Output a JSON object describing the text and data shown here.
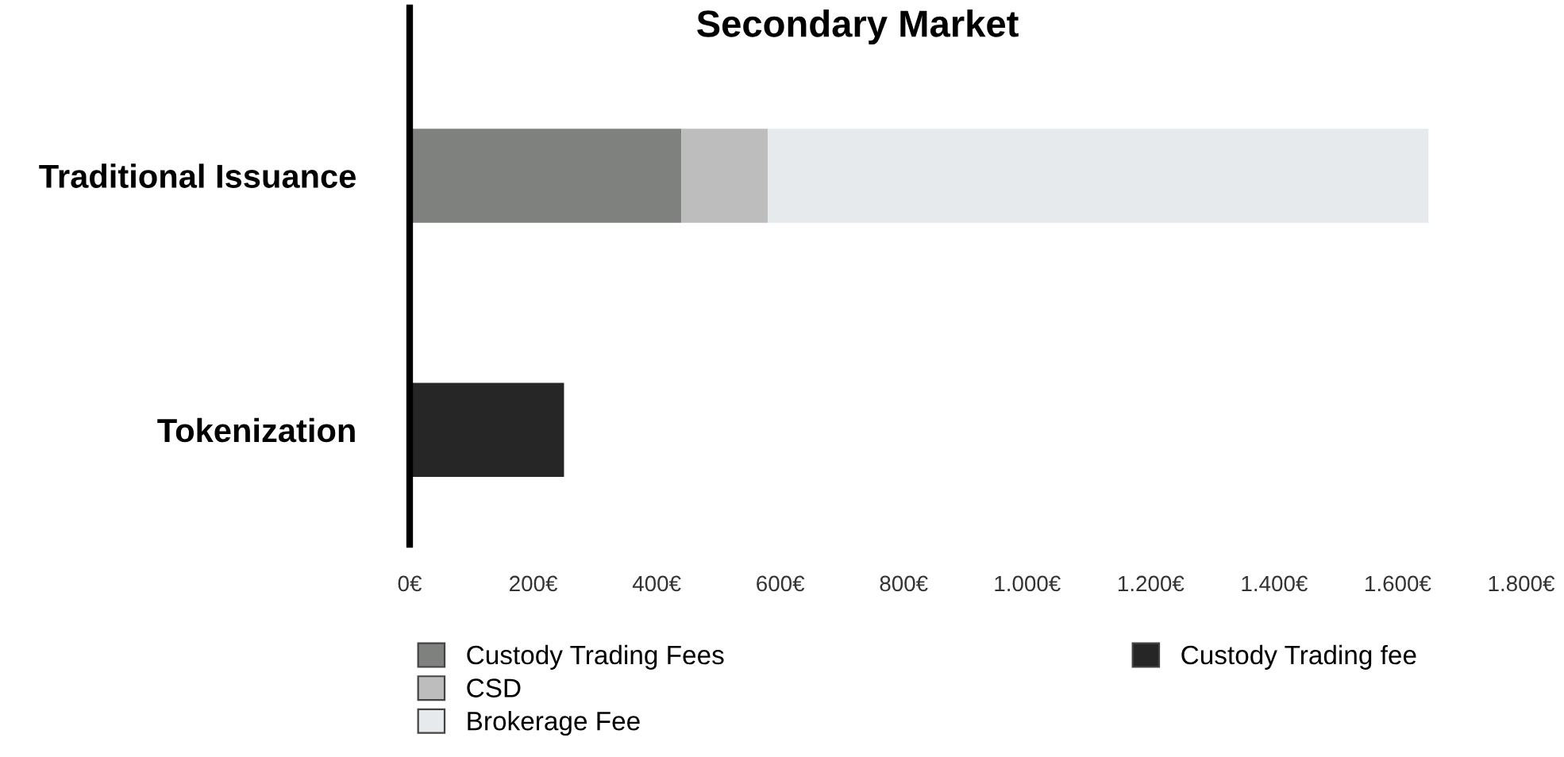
{
  "chart_data": {
    "type": "bar",
    "title": "Secondary Market",
    "orientation": "horizontal",
    "stacked": true,
    "categories": [
      "Traditional Issuance",
      "Tokenization"
    ],
    "series": [
      {
        "name": "Custody Trading Fees",
        "color": "#7f817f",
        "values": [
          440,
          null
        ]
      },
      {
        "name": "CSD",
        "color": "#bdbdbd",
        "values": [
          140,
          null
        ]
      },
      {
        "name": "Brokerage Fee",
        "color": "#e6eaed",
        "values": [
          1070,
          null
        ]
      },
      {
        "name": "Custody Trading fee",
        "color": "#262626",
        "values": [
          null,
          250
        ]
      }
    ],
    "xlim": [
      0,
      1800
    ],
    "xticks": [
      {
        "value": 0,
        "label": "0€"
      },
      {
        "value": 200,
        "label": "200€"
      },
      {
        "value": 400,
        "label": "400€"
      },
      {
        "value": 600,
        "label": "600€"
      },
      {
        "value": 800,
        "label": "800€"
      },
      {
        "value": 1000,
        "label": "1.000€"
      },
      {
        "value": 1200,
        "label": "1.200€"
      },
      {
        "value": 1400,
        "label": "1.400€"
      },
      {
        "value": 1600,
        "label": "1.600€"
      },
      {
        "value": 1800,
        "label": "1.800€"
      }
    ],
    "grid": false,
    "legend": "bottom"
  }
}
